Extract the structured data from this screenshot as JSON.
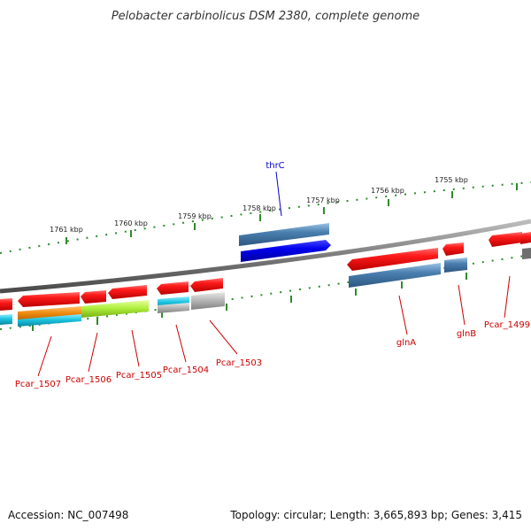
{
  "title": "Pelobacter carbinolicus DSM 2380, complete genome",
  "footer": {
    "accession": "Accession: NC_007498",
    "summary": "Topology: circular; Length: 3,665,893 bp; Genes: 3,415"
  },
  "colors": {
    "backbone": "#8a8a8a",
    "tick": "#2e8b2e",
    "label_red": "#cc0000",
    "label_blue": "#0000cc",
    "red": "#ee1111",
    "steel_blue": "#4a7fb0",
    "blue": "#0000ee",
    "orange": "#f08c10",
    "cyan": "#1cc4e0",
    "lime": "#b0f040",
    "grey": "#b8b8b8"
  },
  "kbp_labels": [
    "1761 kbp",
    "1760 kbp",
    "1759 kbp",
    "1758 kbp",
    "1757 kbp",
    "1756 kbp",
    "1755 kbp"
  ],
  "gene_labels": [
    {
      "text": "thrC",
      "color": "blue"
    },
    {
      "text": "Pcar_1507",
      "color": "red"
    },
    {
      "text": "Pcar_1506",
      "color": "red"
    },
    {
      "text": "Pcar_1505",
      "color": "red"
    },
    {
      "text": "Pcar_1504",
      "color": "red"
    },
    {
      "text": "Pcar_1503",
      "color": "red"
    },
    {
      "text": "glnA",
      "color": "red"
    },
    {
      "text": "glnB",
      "color": "red"
    },
    {
      "text": "Pcar_1499",
      "color": "red"
    }
  ]
}
